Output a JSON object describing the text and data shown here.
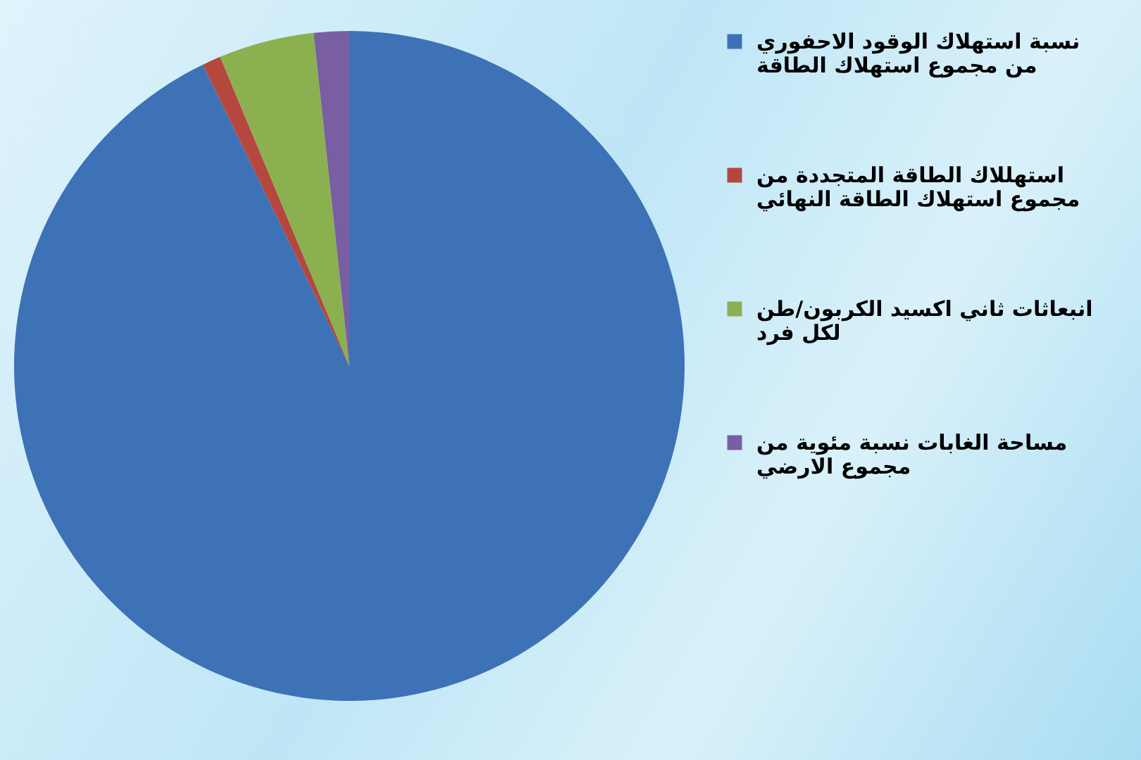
{
  "chart_data": {
    "type": "pie",
    "categories": [
      "نسبة استهلاك الوقود الاحفوري من مجموع استهلاك الطاقة",
      "استهللاك الطاقة المتجددة من مجموع استهلاك الطاقة النهائي",
      "انبعاثات ثاني اكسيد الكربون/طن لكل فرد",
      "مساحة الغابات نسبة مئوية من مجموع الارضي"
    ],
    "values": [
      92.8,
      0.9,
      4.6,
      1.7
    ],
    "colors": [
      "#3d72b6",
      "#b5473f",
      "#8bb04f",
      "#795ea2"
    ],
    "legend": "right"
  }
}
